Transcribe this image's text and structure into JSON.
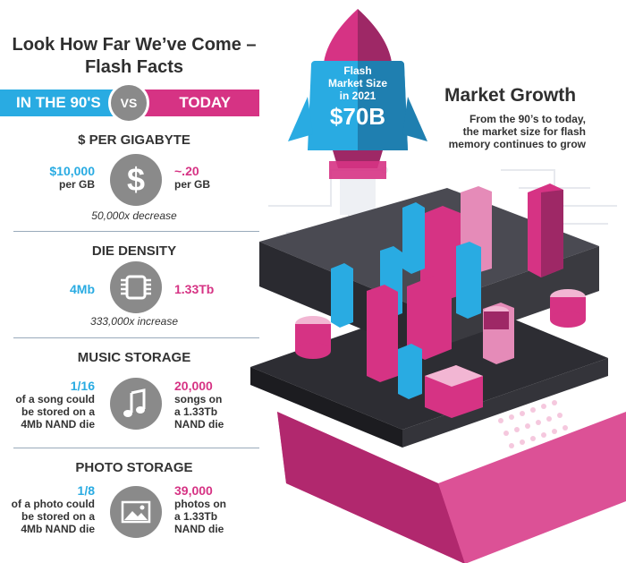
{
  "title": {
    "line1": "Look How Far We’ve Come –",
    "line2": "Flash Facts"
  },
  "compare": {
    "left": "IN THE 90'S",
    "vs": "VS",
    "right": "TODAY"
  },
  "sections": [
    {
      "title": "$ PER GIGABYTE",
      "icon": "dollar-icon",
      "left": {
        "value": "$10,000",
        "sub": [
          "per GB"
        ]
      },
      "right": {
        "value": "~.20",
        "sub": [
          "per GB"
        ]
      },
      "note": "50,000x decrease"
    },
    {
      "title": "DIE DENSITY",
      "icon": "chip-icon",
      "left": {
        "value": "4Mb"
      },
      "right": {
        "value": "1.33Tb"
      },
      "note": "333,000x increase"
    },
    {
      "title": "MUSIC STORAGE",
      "icon": "music-note-icon",
      "left": {
        "value": "1/16",
        "sub": [
          "of a song could",
          "be stored on a",
          "4Mb NAND die"
        ]
      },
      "right": {
        "value": "20,000",
        "sub": [
          "songs on",
          "a 1.33Tb",
          "NAND die"
        ]
      }
    },
    {
      "title": "PHOTO STORAGE",
      "icon": "image-icon",
      "left": {
        "value": "1/8",
        "sub": [
          "of a photo could",
          "be stored on a",
          "4Mb NAND die"
        ]
      },
      "right": {
        "value": "39,000",
        "sub": [
          "photos on",
          "a 1.33Tb",
          "NAND die"
        ]
      }
    }
  ],
  "rocket": {
    "line1": "Flash",
    "line2": "Market Size",
    "line3": "in 2021",
    "value": "$70B"
  },
  "market": {
    "title": "Market Growth",
    "desc": [
      "From the 90’s to today,",
      "the market size for flash",
      "memory continues to grow"
    ]
  },
  "colors": {
    "blue": "#29abe2",
    "pink": "#d63384",
    "gray": "#8a8a8a",
    "dark": "#333333"
  }
}
